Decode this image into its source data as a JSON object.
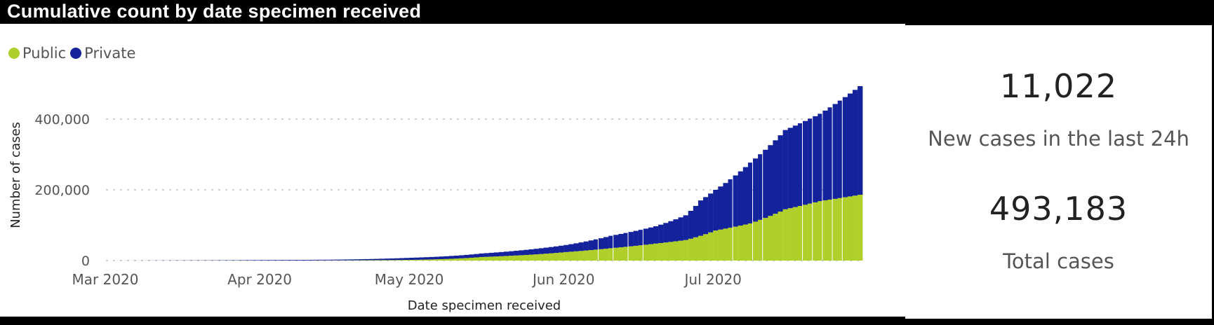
{
  "title": "Cumulative count by date specimen received",
  "kpis": [
    {
      "value": "11,022",
      "label": "New cases in the last 24h"
    },
    {
      "value": "493,183",
      "label": "Total cases"
    }
  ],
  "chart_data": {
    "type": "bar",
    "stacked": true,
    "cumulative": true,
    "title": "Cumulative count by date specimen received",
    "xlabel": "Date specimen received",
    "ylabel": "Number of cases",
    "ylim": [
      0,
      500000
    ],
    "yticks": [
      0,
      200000,
      400000
    ],
    "ytick_labels": [
      "0",
      "200,000",
      "400,000"
    ],
    "xtick_labels": [
      "Mar 2020",
      "Apr 2020",
      "May 2020",
      "Jun 2020",
      "Jul 2020"
    ],
    "xtick_days_from_mar1": [
      0,
      31,
      61,
      92,
      122
    ],
    "grid": true,
    "legend": {
      "placement": "top-left",
      "entries": [
        {
          "name": "Public",
          "color": "#b0cf2a"
        },
        {
          "name": "Private",
          "color": "#14239b"
        }
      ]
    },
    "date_range": [
      "2020-03-03",
      "2020-07-30"
    ],
    "anchor_days_from_mar1": [
      2,
      14,
      31,
      45,
      61,
      75,
      92,
      101,
      110,
      116,
      119,
      122,
      129,
      136,
      143,
      151
    ],
    "anchor_dates": [
      "Mar 3",
      "Mar 15",
      "Apr 1",
      "Apr 15",
      "May 1",
      "May 15",
      "Jun 1",
      "Jun 10",
      "Jun 19",
      "Jun 25",
      "Jun 28",
      "Jul 1",
      "Jul 8",
      "Jul 15",
      "Jul 22",
      "Jul 30"
    ],
    "series": [
      {
        "name": "Public",
        "values": [
          0,
          50,
          100,
          500,
          2000,
          10000,
          24000,
          35000,
          48000,
          58000,
          70000,
          85000,
          105000,
          145000,
          168000,
          186000
        ]
      },
      {
        "name": "Private",
        "values": [
          100,
          450,
          1400,
          2000,
          6000,
          10000,
          20000,
          35000,
          49000,
          70000,
          100000,
          115000,
          172000,
          224000,
          247000,
          307183
        ]
      }
    ]
  }
}
